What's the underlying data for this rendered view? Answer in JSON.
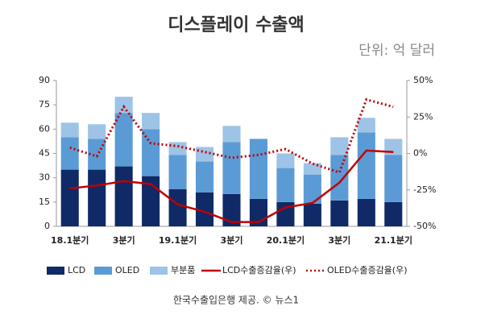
{
  "chart_data": {
    "type": "bar",
    "stacked": true,
    "title": "디스플레이 수출액",
    "unit": "단위: 억 달러",
    "source": "한국수출입은행 제공. © 뉴스1",
    "categories": [
      "18.1분기",
      null,
      "3분기",
      null,
      "19.1분기",
      null,
      "3분기",
      null,
      "20.1분기",
      null,
      "3분기",
      null,
      "21.1분기"
    ],
    "ylim": [
      0,
      90
    ],
    "yticks": [
      0,
      15,
      30,
      45,
      60,
      75,
      90
    ],
    "y2lim": [
      -50,
      50
    ],
    "y2ticks": [
      {
        "value": -50,
        "label": "-50%"
      },
      {
        "value": -25,
        "label": "-25%"
      },
      {
        "value": 0,
        "label": "0%"
      },
      {
        "value": 25,
        "label": "25%"
      },
      {
        "value": 50,
        "label": "50%"
      }
    ],
    "legend": "bottom",
    "series": [
      {
        "name": "LCD",
        "type": "bar",
        "color": "#0f2a66",
        "values": [
          35,
          35,
          37,
          31,
          23,
          21,
          20,
          17,
          15,
          14,
          16,
          17,
          15
        ]
      },
      {
        "name": "OLED",
        "type": "bar",
        "color": "#5b9bd5",
        "values": [
          20,
          19,
          33,
          29,
          21,
          19,
          32,
          37,
          21,
          18,
          28,
          41,
          29
        ]
      },
      {
        "name": "부분품",
        "type": "bar",
        "color": "#9dc3e6",
        "values": [
          9,
          9,
          10,
          10,
          8,
          9,
          10,
          0,
          9,
          7,
          11,
          9,
          10
        ]
      },
      {
        "name": "LCD수출증감율(우)",
        "type": "line",
        "axis": "y2",
        "line_style": "solid",
        "color": "#c00000",
        "values": [
          -24,
          -22,
          -19,
          -21,
          -35,
          -40,
          -47,
          -47,
          -37,
          -34,
          -20,
          2,
          1
        ]
      },
      {
        "name": "OLED수출증감율(우)",
        "type": "line",
        "axis": "y2",
        "line_style": "dotted",
        "color": "#c00000",
        "values": [
          4,
          -2,
          32,
          7,
          5,
          1,
          -3,
          -1,
          3,
          -7,
          -13,
          37,
          32
        ]
      }
    ]
  }
}
